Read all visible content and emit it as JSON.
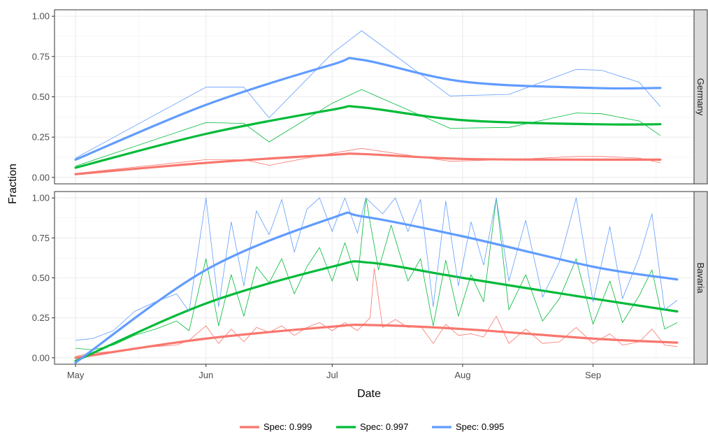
{
  "chart_data": {
    "type": "line",
    "xlabel": "Date",
    "ylabel": "Fraction",
    "x_ticks": [
      "May",
      "Jun",
      "Jul",
      "Aug",
      "Sep"
    ],
    "x_tick_dates": [
      "2020-05-01",
      "2020-06-01",
      "2020-07-01",
      "2020-08-01",
      "2020-09-01"
    ],
    "xlim": [
      "2020-04-26",
      "2020-09-25"
    ],
    "ylim": [
      -0.04,
      1.04
    ],
    "y_ticks": [
      "0.00",
      "0.25",
      "0.50",
      "0.75",
      "1.00"
    ],
    "y_tick_values": [
      0,
      0.25,
      0.5,
      0.75,
      1
    ],
    "grid": true,
    "legend_position": "bottom",
    "legend": [
      "Spec: 0.999",
      "Spec: 0.997",
      "Spec: 0.995"
    ],
    "colors": {
      "Spec: 0.999": "#F8766D",
      "Spec: 0.997": "#00BA38",
      "Spec: 0.995": "#619CFF"
    },
    "panels": [
      {
        "label": "Germany",
        "series": [
          {
            "name": "Spec: 0.999",
            "raw": [
              [
                "2020-05-01",
                0.025
              ],
              [
                "2020-06-01",
                0.11
              ],
              [
                "2020-06-10",
                0.11
              ],
              [
                "2020-06-16",
                0.075
              ],
              [
                "2020-07-01",
                0.15
              ],
              [
                "2020-07-08",
                0.18
              ],
              [
                "2020-07-29",
                0.1
              ],
              [
                "2020-08-12",
                0.11
              ],
              [
                "2020-08-28",
                0.13
              ],
              [
                "2020-09-03",
                0.13
              ],
              [
                "2020-09-12",
                0.12
              ],
              [
                "2020-09-17",
                0.09
              ]
            ],
            "smooth": [
              [
                "2020-05-01",
                0.02
              ],
              [
                "2020-06-01",
                0.09
              ],
              [
                "2020-07-01",
                0.14
              ],
              [
                "2020-07-08",
                0.145
              ],
              [
                "2020-08-01",
                0.115
              ],
              [
                "2020-09-01",
                0.11
              ],
              [
                "2020-09-17",
                0.11
              ]
            ]
          },
          {
            "name": "Spec: 0.997",
            "raw": [
              [
                "2020-05-01",
                0.07
              ],
              [
                "2020-06-01",
                0.34
              ],
              [
                "2020-06-10",
                0.335
              ],
              [
                "2020-06-16",
                0.22
              ],
              [
                "2020-07-01",
                0.46
              ],
              [
                "2020-07-08",
                0.545
              ],
              [
                "2020-07-29",
                0.305
              ],
              [
                "2020-08-12",
                0.31
              ],
              [
                "2020-08-28",
                0.4
              ],
              [
                "2020-09-03",
                0.395
              ],
              [
                "2020-09-12",
                0.35
              ],
              [
                "2020-09-17",
                0.26
              ]
            ],
            "smooth": [
              [
                "2020-05-01",
                0.06
              ],
              [
                "2020-06-01",
                0.27
              ],
              [
                "2020-07-01",
                0.42
              ],
              [
                "2020-07-08",
                0.435
              ],
              [
                "2020-08-01",
                0.355
              ],
              [
                "2020-09-01",
                0.33
              ],
              [
                "2020-09-17",
                0.33
              ]
            ]
          },
          {
            "name": "Spec: 0.995",
            "raw": [
              [
                "2020-05-01",
                0.12
              ],
              [
                "2020-06-01",
                0.56
              ],
              [
                "2020-06-10",
                0.56
              ],
              [
                "2020-06-16",
                0.37
              ],
              [
                "2020-07-01",
                0.77
              ],
              [
                "2020-07-08",
                0.91
              ],
              [
                "2020-07-29",
                0.505
              ],
              [
                "2020-08-12",
                0.515
              ],
              [
                "2020-08-28",
                0.67
              ],
              [
                "2020-09-03",
                0.665
              ],
              [
                "2020-09-12",
                0.59
              ],
              [
                "2020-09-17",
                0.44
              ]
            ],
            "smooth": [
              [
                "2020-05-01",
                0.11
              ],
              [
                "2020-06-01",
                0.45
              ],
              [
                "2020-07-01",
                0.7
              ],
              [
                "2020-07-08",
                0.73
              ],
              [
                "2020-08-01",
                0.595
              ],
              [
                "2020-09-01",
                0.555
              ],
              [
                "2020-09-17",
                0.555
              ]
            ]
          }
        ]
      },
      {
        "label": "Bavaria",
        "series": [
          {
            "name": "Spec: 0.999",
            "raw": [
              [
                "2020-05-01",
                0.01
              ],
              [
                "2020-05-05",
                0.03
              ],
              [
                "2020-05-10",
                0.04
              ],
              [
                "2020-05-15",
                0.06
              ],
              [
                "2020-05-20",
                0.07
              ],
              [
                "2020-05-25",
                0.08
              ],
              [
                "2020-05-28",
                0.11
              ],
              [
                "2020-06-01",
                0.2
              ],
              [
                "2020-06-04",
                0.09
              ],
              [
                "2020-06-07",
                0.18
              ],
              [
                "2020-06-10",
                0.1
              ],
              [
                "2020-06-13",
                0.19
              ],
              [
                "2020-06-16",
                0.16
              ],
              [
                "2020-06-19",
                0.2
              ],
              [
                "2020-06-22",
                0.14
              ],
              [
                "2020-06-25",
                0.19
              ],
              [
                "2020-06-28",
                0.22
              ],
              [
                "2020-07-01",
                0.17
              ],
              [
                "2020-07-04",
                0.22
              ],
              [
                "2020-07-07",
                0.17
              ],
              [
                "2020-07-10",
                0.25
              ],
              [
                "2020-07-11",
                0.56
              ],
              [
                "2020-07-13",
                0.19
              ],
              [
                "2020-07-16",
                0.24
              ],
              [
                "2020-07-19",
                0.19
              ],
              [
                "2020-07-22",
                0.2
              ],
              [
                "2020-07-25",
                0.09
              ],
              [
                "2020-07-28",
                0.21
              ],
              [
                "2020-07-31",
                0.14
              ],
              [
                "2020-08-03",
                0.15
              ],
              [
                "2020-08-06",
                0.13
              ],
              [
                "2020-08-09",
                0.26
              ],
              [
                "2020-08-12",
                0.09
              ],
              [
                "2020-08-16",
                0.18
              ],
              [
                "2020-08-20",
                0.09
              ],
              [
                "2020-08-24",
                0.1
              ],
              [
                "2020-08-28",
                0.19
              ],
              [
                "2020-09-01",
                0.09
              ],
              [
                "2020-09-05",
                0.15
              ],
              [
                "2020-09-08",
                0.08
              ],
              [
                "2020-09-12",
                0.1
              ],
              [
                "2020-09-15",
                0.18
              ],
              [
                "2020-09-18",
                0.08
              ],
              [
                "2020-09-21",
                0.07
              ]
            ],
            "smooth": [
              [
                "2020-05-01",
                0.0
              ],
              [
                "2020-06-01",
                0.12
              ],
              [
                "2020-07-01",
                0.195
              ],
              [
                "2020-07-10",
                0.205
              ],
              [
                "2020-08-01",
                0.18
              ],
              [
                "2020-09-01",
                0.12
              ],
              [
                "2020-09-21",
                0.095
              ]
            ]
          },
          {
            "name": "Spec: 0.997",
            "raw": [
              [
                "2020-05-01",
                0.06
              ],
              [
                "2020-05-05",
                0.05
              ],
              [
                "2020-05-10",
                0.08
              ],
              [
                "2020-05-15",
                0.14
              ],
              [
                "2020-05-20",
                0.18
              ],
              [
                "2020-05-25",
                0.23
              ],
              [
                "2020-05-28",
                0.17
              ],
              [
                "2020-06-01",
                0.62
              ],
              [
                "2020-06-04",
                0.2
              ],
              [
                "2020-06-07",
                0.52
              ],
              [
                "2020-06-10",
                0.26
              ],
              [
                "2020-06-13",
                0.57
              ],
              [
                "2020-06-16",
                0.47
              ],
              [
                "2020-06-19",
                0.62
              ],
              [
                "2020-06-22",
                0.4
              ],
              [
                "2020-06-25",
                0.57
              ],
              [
                "2020-06-28",
                0.69
              ],
              [
                "2020-07-01",
                0.48
              ],
              [
                "2020-07-04",
                0.72
              ],
              [
                "2020-07-07",
                0.48
              ],
              [
                "2020-07-09",
                1.0
              ],
              [
                "2020-07-12",
                0.55
              ],
              [
                "2020-07-15",
                0.83
              ],
              [
                "2020-07-19",
                0.48
              ],
              [
                "2020-07-22",
                0.62
              ],
              [
                "2020-07-25",
                0.2
              ],
              [
                "2020-07-28",
                0.61
              ],
              [
                "2020-07-31",
                0.26
              ],
              [
                "2020-08-03",
                0.52
              ],
              [
                "2020-08-06",
                0.35
              ],
              [
                "2020-08-09",
                1.0
              ],
              [
                "2020-08-12",
                0.3
              ],
              [
                "2020-08-16",
                0.52
              ],
              [
                "2020-08-20",
                0.23
              ],
              [
                "2020-08-24",
                0.37
              ],
              [
                "2020-08-28",
                0.62
              ],
              [
                "2020-09-01",
                0.21
              ],
              [
                "2020-09-05",
                0.48
              ],
              [
                "2020-09-08",
                0.22
              ],
              [
                "2020-09-12",
                0.39
              ],
              [
                "2020-09-15",
                0.55
              ],
              [
                "2020-09-18",
                0.18
              ],
              [
                "2020-09-21",
                0.22
              ]
            ],
            "smooth": [
              [
                "2020-05-01",
                -0.02
              ],
              [
                "2020-06-01",
                0.34
              ],
              [
                "2020-07-01",
                0.57
              ],
              [
                "2020-07-10",
                0.595
              ],
              [
                "2020-08-01",
                0.5
              ],
              [
                "2020-09-01",
                0.37
              ],
              [
                "2020-09-21",
                0.29
              ]
            ]
          },
          {
            "name": "Spec: 0.995",
            "raw": [
              [
                "2020-05-01",
                0.11
              ],
              [
                "2020-05-05",
                0.12
              ],
              [
                "2020-05-10",
                0.17
              ],
              [
                "2020-05-15",
                0.29
              ],
              [
                "2020-05-20",
                0.35
              ],
              [
                "2020-05-25",
                0.4
              ],
              [
                "2020-05-28",
                0.29
              ],
              [
                "2020-06-01",
                1.0
              ],
              [
                "2020-06-04",
                0.32
              ],
              [
                "2020-06-07",
                0.85
              ],
              [
                "2020-06-10",
                0.45
              ],
              [
                "2020-06-13",
                0.92
              ],
              [
                "2020-06-16",
                0.77
              ],
              [
                "2020-06-19",
                0.99
              ],
              [
                "2020-06-22",
                0.66
              ],
              [
                "2020-06-25",
                0.93
              ],
              [
                "2020-06-28",
                1.0
              ],
              [
                "2020-07-01",
                0.79
              ],
              [
                "2020-07-04",
                1.0
              ],
              [
                "2020-07-07",
                0.78
              ],
              [
                "2020-07-09",
                1.0
              ],
              [
                "2020-07-13",
                0.9
              ],
              [
                "2020-07-16",
                1.0
              ],
              [
                "2020-07-19",
                0.79
              ],
              [
                "2020-07-22",
                0.99
              ],
              [
                "2020-07-25",
                0.32
              ],
              [
                "2020-07-28",
                0.98
              ],
              [
                "2020-07-31",
                0.45
              ],
              [
                "2020-08-03",
                0.85
              ],
              [
                "2020-08-06",
                0.58
              ],
              [
                "2020-08-09",
                1.0
              ],
              [
                "2020-08-12",
                0.48
              ],
              [
                "2020-08-16",
                0.86
              ],
              [
                "2020-08-20",
                0.38
              ],
              [
                "2020-08-24",
                0.6
              ],
              [
                "2020-08-28",
                1.0
              ],
              [
                "2020-09-01",
                0.35
              ],
              [
                "2020-09-05",
                0.82
              ],
              [
                "2020-09-08",
                0.37
              ],
              [
                "2020-09-12",
                0.63
              ],
              [
                "2020-09-15",
                0.9
              ],
              [
                "2020-09-18",
                0.3
              ],
              [
                "2020-09-21",
                0.36
              ]
            ],
            "smooth": [
              [
                "2020-05-01",
                -0.03
              ],
              [
                "2020-06-01",
                0.55
              ],
              [
                "2020-07-01",
                0.875
              ],
              [
                "2020-07-08",
                0.885
              ],
              [
                "2020-08-01",
                0.76
              ],
              [
                "2020-09-01",
                0.57
              ],
              [
                "2020-09-21",
                0.49
              ]
            ]
          }
        ]
      }
    ]
  }
}
